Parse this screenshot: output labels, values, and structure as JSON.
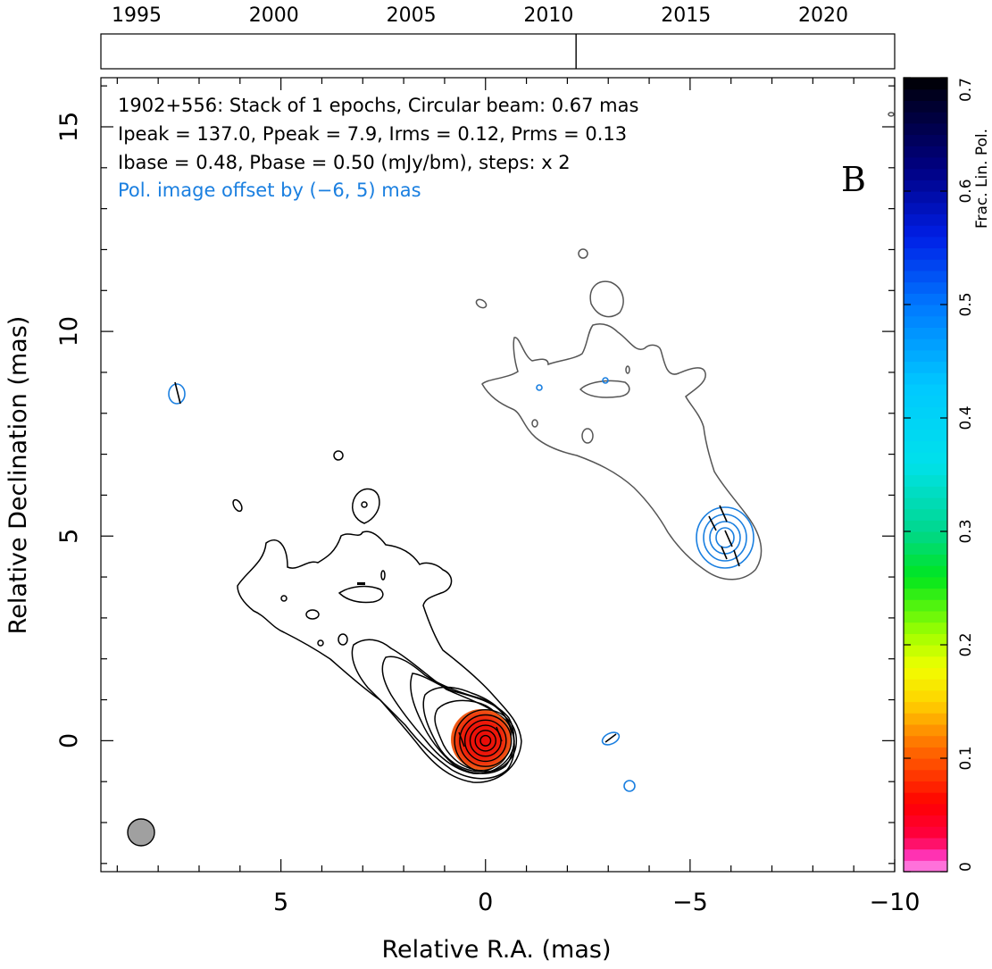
{
  "chart_data": {
    "type": "contour",
    "source": "1902+556",
    "header_lines": [
      "1902+556: Stack of 1 epochs, Circular beam: 0.67 mas",
      "Ipeak = 137.0, Ppeak = 7.9, Irms = 0.12, Prms = 0.13",
      "Ibase = 0.48, Pbase = 0.50 (mJy/bm), steps: x 2"
    ],
    "offset_note": "Pol. image offset by (−6, 5) mas",
    "panel_letter": "B",
    "xlabel": "Relative R.A. (mas)",
    "ylabel": "Relative Declination (mas)",
    "xlim": [
      9.4,
      -10
    ],
    "ylim": [
      -3.2,
      16.2
    ],
    "x_ticks": [
      5,
      0,
      -5,
      -10
    ],
    "x_tick_labels": [
      "5",
      "0",
      "−5",
      "−10"
    ],
    "y_ticks": [
      0,
      5,
      10,
      15
    ],
    "y_tick_labels": [
      "0",
      "5",
      "10",
      "15"
    ],
    "epoch_timeline": {
      "years": [
        1995,
        2000,
        2005,
        2010,
        2015,
        2020
      ],
      "range": [
        1993.7,
        2022.6
      ],
      "epochs": [
        2011.0
      ]
    },
    "colorbar": {
      "label": "Frac. Lin. Pol.",
      "range": [
        0,
        0.7
      ],
      "ticks": [
        0,
        0.1,
        0.2,
        0.3,
        0.4,
        0.5,
        0.6,
        0.7
      ],
      "tick_labels": [
        "0",
        "0.1",
        "0.2",
        "0.3",
        "0.4",
        "0.5",
        "0.6",
        "0.7"
      ]
    },
    "beam_fwhm_mas": 0.67,
    "beam_position": [
      8.4,
      -2.2
    ],
    "core_position": [
      0,
      0
    ],
    "pol_core_position": [
      -6,
      5
    ],
    "core_circle_radii_mas": [
      0.12,
      0.24,
      0.36,
      0.48,
      0.6,
      0.72
    ]
  },
  "colors": {
    "stokes_i_contour": "#000000",
    "pol_offset_contour": "#555555",
    "pol_contour": "#1a7fe0",
    "core_fill": "#e81010",
    "beam_fill": "#a0a0a0",
    "offset_note_color": "#1a7fe0"
  }
}
